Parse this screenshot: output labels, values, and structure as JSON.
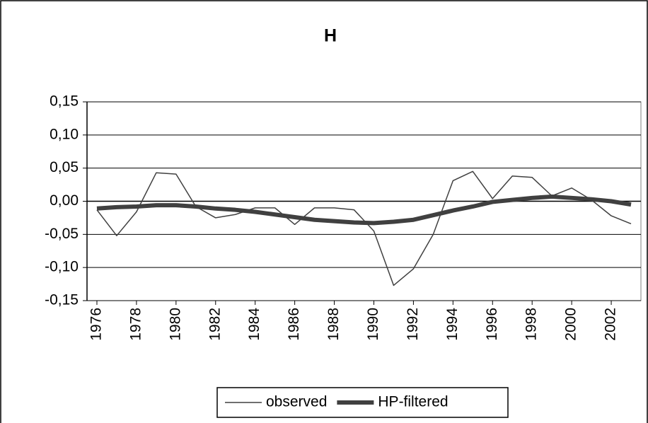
{
  "chart_data": {
    "type": "line",
    "title": "H",
    "x": [
      1976,
      1977,
      1978,
      1979,
      1980,
      1981,
      1982,
      1983,
      1984,
      1985,
      1986,
      1987,
      1988,
      1989,
      1990,
      1991,
      1992,
      1993,
      1994,
      1995,
      1996,
      1997,
      1998,
      1999,
      2000,
      2001,
      2002,
      2003
    ],
    "series": [
      {
        "name": "observed",
        "color": "#404040",
        "width": 1.5,
        "values": [
          -0.013,
          -0.052,
          -0.016,
          0.043,
          0.041,
          -0.008,
          -0.025,
          -0.02,
          -0.01,
          -0.01,
          -0.035,
          -0.01,
          -0.01,
          -0.013,
          -0.045,
          -0.127,
          -0.102,
          -0.05,
          0.031,
          0.045,
          0.004,
          0.038,
          0.036,
          0.008,
          0.02,
          0.002,
          -0.022,
          -0.034
        ]
      },
      {
        "name": "HP-filtered",
        "color": "#404040",
        "width": 6,
        "values": [
          -0.011,
          -0.009,
          -0.008,
          -0.006,
          -0.006,
          -0.008,
          -0.011,
          -0.013,
          -0.016,
          -0.02,
          -0.024,
          -0.028,
          -0.03,
          -0.032,
          -0.033,
          -0.031,
          -0.028,
          -0.021,
          -0.014,
          -0.008,
          -0.001,
          0.002,
          0.005,
          0.007,
          0.005,
          0.003,
          0.0,
          -0.005
        ]
      }
    ],
    "xlim": [
      1975.5,
      2003.5
    ],
    "xticks": [
      1976,
      1978,
      1980,
      1982,
      1984,
      1986,
      1988,
      1990,
      1992,
      1994,
      1996,
      1998,
      2000,
      2002
    ],
    "ylim": [
      -0.15,
      0.15
    ],
    "yticks": [
      {
        "value": -0.15,
        "label": "-0,15"
      },
      {
        "value": -0.1,
        "label": "-0,10"
      },
      {
        "value": -0.05,
        "label": "-0,05"
      },
      {
        "value": 0,
        "label": "0,00"
      },
      {
        "value": 0.05,
        "label": "0,05"
      },
      {
        "value": 0.1,
        "label": "0,10"
      },
      {
        "value": 0.15,
        "label": "0,15"
      }
    ],
    "grid": true,
    "legend": "bottom"
  }
}
